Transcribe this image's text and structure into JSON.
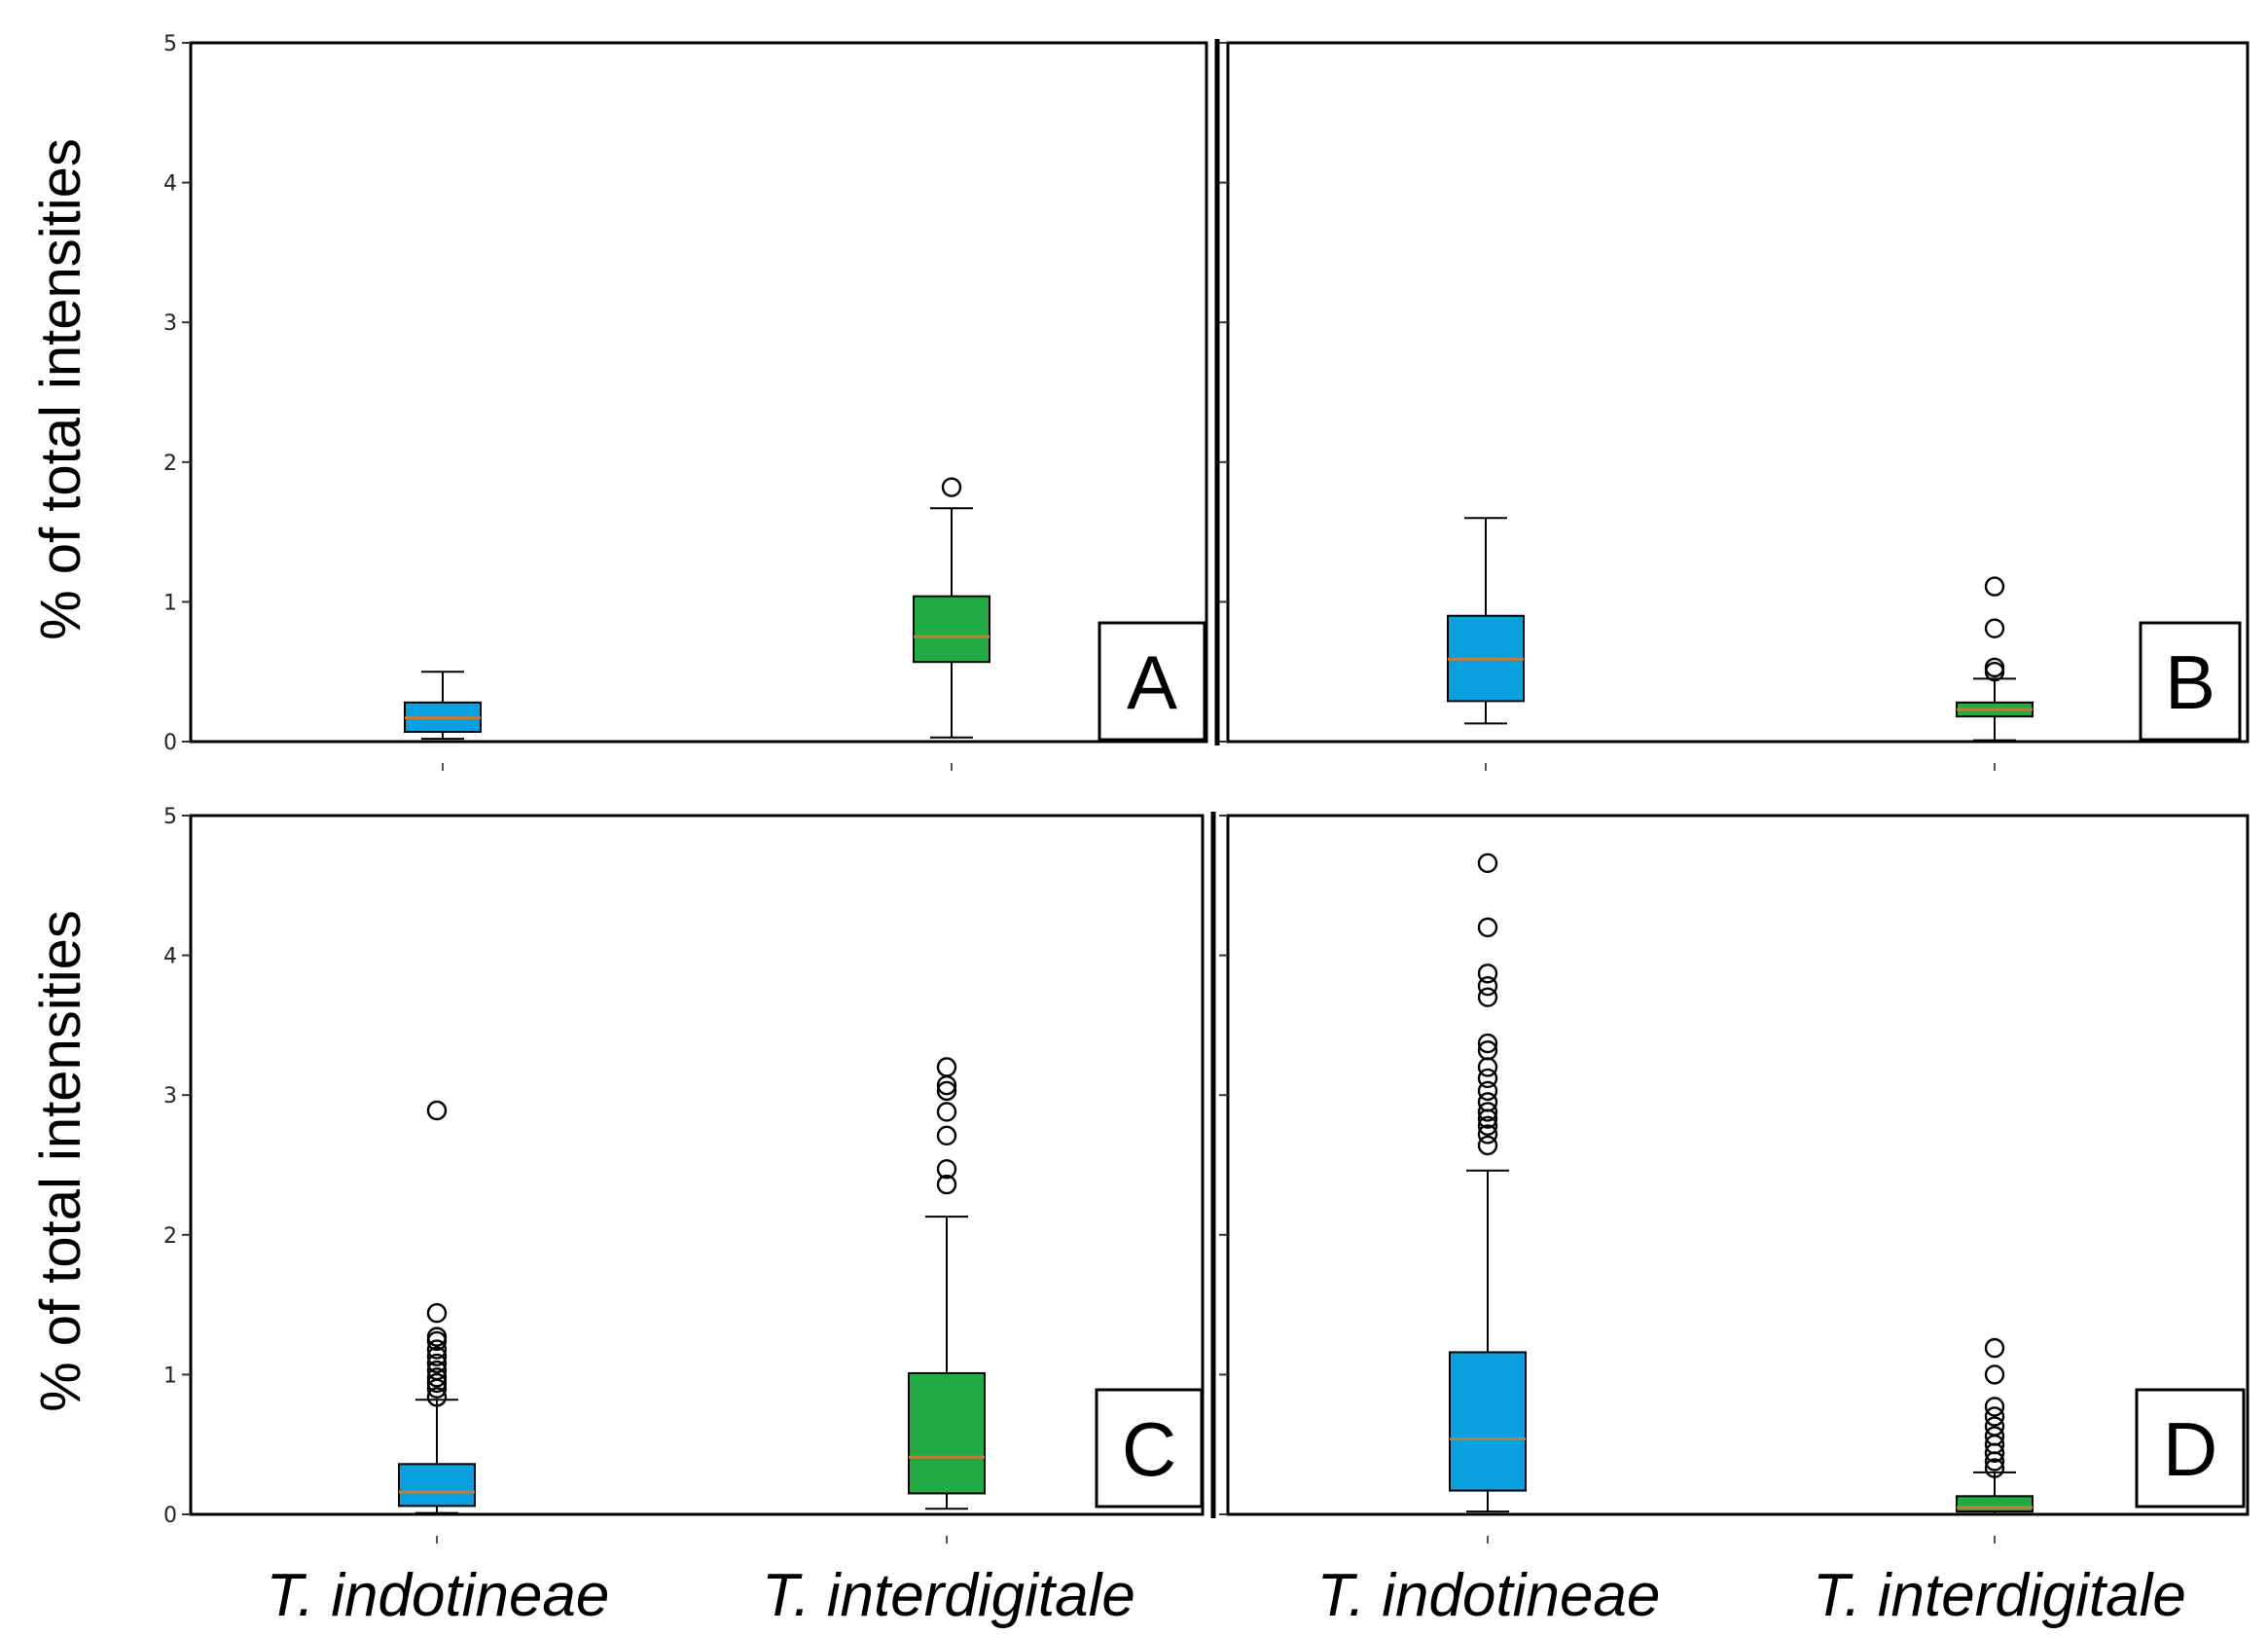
{
  "figure": {
    "ylabel": "% of total intensities",
    "xlabels": [
      "T. indotineae",
      "T. interdigitale"
    ]
  },
  "colors": {
    "indotineae": "#0aa0e0",
    "interdigitale": "#22aa44",
    "median": "#c87a30",
    "axis": "#000000"
  },
  "chart_data": [
    {
      "type": "box",
      "panel": "A",
      "ylim": [
        0,
        5
      ],
      "yticks": [
        "0",
        "1",
        "2",
        "3",
        "4",
        "5"
      ],
      "categories": [
        "T. indotineae",
        "T. interdigitale"
      ],
      "boxes": [
        {
          "name": "T. indotineae",
          "whisker_low": 0.02,
          "q1": 0.07,
          "median": 0.17,
          "q3": 0.28,
          "whisker_high": 0.5,
          "outliers": []
        },
        {
          "name": "T. interdigitale",
          "whisker_low": 0.03,
          "q1": 0.57,
          "median": 0.75,
          "q3": 1.04,
          "whisker_high": 1.67,
          "outliers": [
            1.82
          ]
        }
      ]
    },
    {
      "type": "box",
      "panel": "B",
      "ylim": [
        0,
        5
      ],
      "yticks": [],
      "categories": [
        "T. indotineae",
        "T. interdigitale"
      ],
      "boxes": [
        {
          "name": "T. indotineae",
          "whisker_low": 0.13,
          "q1": 0.29,
          "median": 0.59,
          "q3": 0.9,
          "whisker_high": 1.6,
          "outliers": []
        },
        {
          "name": "T. interdigitale",
          "whisker_low": 0.01,
          "q1": 0.18,
          "median": 0.23,
          "q3": 0.28,
          "whisker_high": 0.45,
          "outliers": [
            0.5,
            0.53,
            0.81,
            1.11
          ]
        }
      ]
    },
    {
      "type": "box",
      "panel": "C",
      "ylim": [
        0,
        5
      ],
      "yticks": [
        "0",
        "1",
        "2",
        "3",
        "4",
        "5"
      ],
      "categories": [
        "T. indotineae",
        "T. interdigitale"
      ],
      "boxes": [
        {
          "name": "T. indotineae",
          "whisker_low": 0.01,
          "q1": 0.06,
          "median": 0.16,
          "q3": 0.36,
          "whisker_high": 0.82,
          "outliers": [
            0.84,
            0.9,
            0.94,
            0.98,
            1.03,
            1.08,
            1.13,
            1.18,
            1.24,
            1.27,
            1.44,
            2.89
          ]
        },
        {
          "name": "T. interdigitale",
          "whisker_low": 0.04,
          "q1": 0.15,
          "median": 0.41,
          "q3": 1.01,
          "whisker_high": 2.13,
          "outliers": [
            2.36,
            2.47,
            2.71,
            2.88,
            3.03,
            3.07,
            3.2
          ]
        }
      ]
    },
    {
      "type": "box",
      "panel": "D",
      "ylim": [
        0,
        5
      ],
      "yticks": [],
      "categories": [
        "T. indotineae",
        "T. interdigitale"
      ],
      "boxes": [
        {
          "name": "T. indotineae",
          "whisker_low": 0.02,
          "q1": 0.17,
          "median": 0.54,
          "q3": 1.16,
          "whisker_high": 2.46,
          "outliers": [
            2.64,
            2.72,
            2.78,
            2.83,
            2.88,
            2.95,
            3.03,
            3.12,
            3.2,
            3.32,
            3.37,
            3.7,
            3.78,
            3.87,
            4.2,
            4.66
          ]
        },
        {
          "name": "T. interdigitale",
          "whisker_low": 0.0,
          "q1": 0.02,
          "median": 0.05,
          "q3": 0.13,
          "whisker_high": 0.3,
          "outliers": [
            0.33,
            0.38,
            0.44,
            0.5,
            0.56,
            0.63,
            0.7,
            0.77,
            1.0,
            1.19
          ]
        }
      ]
    }
  ]
}
